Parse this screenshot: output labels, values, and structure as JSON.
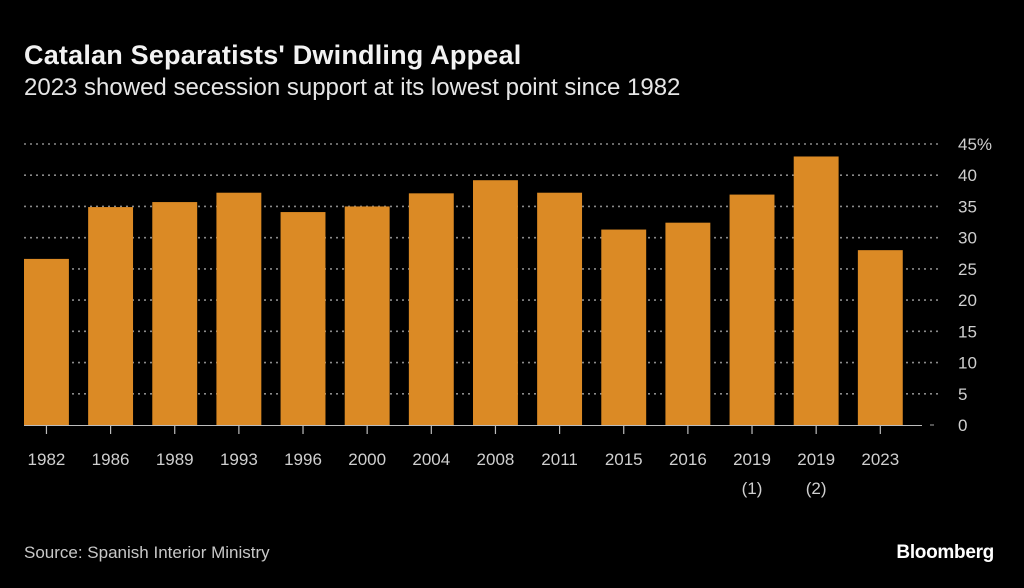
{
  "header": {
    "title": "Catalan Separatists' Dwindling Appeal",
    "subtitle": "2023 showed secession support at its lowest point since 1982"
  },
  "footer": {
    "source": "Source: Spanish Interior Ministry",
    "brand": "Bloomberg"
  },
  "colors": {
    "bar": "#DB8A25",
    "background": "#000000",
    "grid": "#8a8a8a",
    "tick_text": "#cfcfcf"
  },
  "chart_data": {
    "type": "bar",
    "title": "Catalan Separatists' Dwindling Appeal",
    "subtitle": "2023 showed secession support at its lowest point since 1982",
    "xlabel": "",
    "ylabel": "",
    "categories": [
      "1982",
      "1986",
      "1989",
      "1993",
      "1996",
      "2000",
      "2004",
      "2008",
      "2011",
      "2015",
      "2016",
      "2019 (1)",
      "2019 (2)",
      "2023"
    ],
    "category_lines": [
      [
        "1982"
      ],
      [
        "1986"
      ],
      [
        "1989"
      ],
      [
        "1993"
      ],
      [
        "1996"
      ],
      [
        "2000"
      ],
      [
        "2004"
      ],
      [
        "2008"
      ],
      [
        "2011"
      ],
      [
        "2015"
      ],
      [
        "2016"
      ],
      [
        "2019",
        "(1)"
      ],
      [
        "2019",
        "(2)"
      ],
      [
        "2023"
      ]
    ],
    "values": [
      26.6,
      34.9,
      35.7,
      37.2,
      34.1,
      35.0,
      37.1,
      39.2,
      37.2,
      31.3,
      32.4,
      36.9,
      43.0,
      28.0
    ],
    "ylim": [
      0,
      45
    ],
    "yticks": [
      0,
      5,
      10,
      15,
      20,
      25,
      30,
      35,
      40,
      45
    ],
    "ytick_labels": [
      "0",
      "5",
      "10",
      "15",
      "20",
      "25",
      "30",
      "35",
      "40",
      "45%"
    ],
    "y_axis_side": "right",
    "grid": true,
    "grid_style": "dotted",
    "legend": "none",
    "source": "Source: Spanish Interior Ministry"
  }
}
